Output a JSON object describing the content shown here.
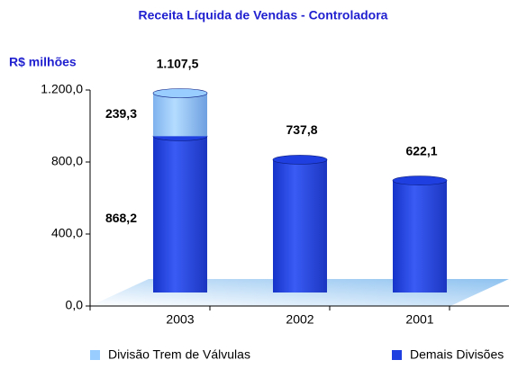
{
  "chart_data": {
    "type": "bar",
    "stacked": true,
    "title": "Receita Líquida de Vendas -  Controladora",
    "y_label": "R$ milhões",
    "categories": [
      "2003",
      "2002",
      "2001"
    ],
    "series": [
      {
        "name": "Divisão Trem de Válvulas",
        "color": "#99ccff",
        "values": [
          239.3,
          null,
          null
        ],
        "value_labels": [
          "239,3",
          null,
          null
        ]
      },
      {
        "name": "Demais Divisões",
        "color": "#1f3fe0",
        "values": [
          868.2,
          737.8,
          622.1
        ],
        "value_labels": [
          "868,2",
          "737,8",
          "622,1"
        ]
      }
    ],
    "annotations": [
      "1.107,5"
    ],
    "ylim": [
      0,
      1200
    ],
    "yticks": [
      {
        "value": 0,
        "label": "0,0"
      },
      {
        "value": 400,
        "label": "400,0"
      },
      {
        "value": 800,
        "label": "800,0"
      },
      {
        "value": 1200,
        "label": "1.200,0"
      }
    ],
    "legend": "bottom"
  }
}
